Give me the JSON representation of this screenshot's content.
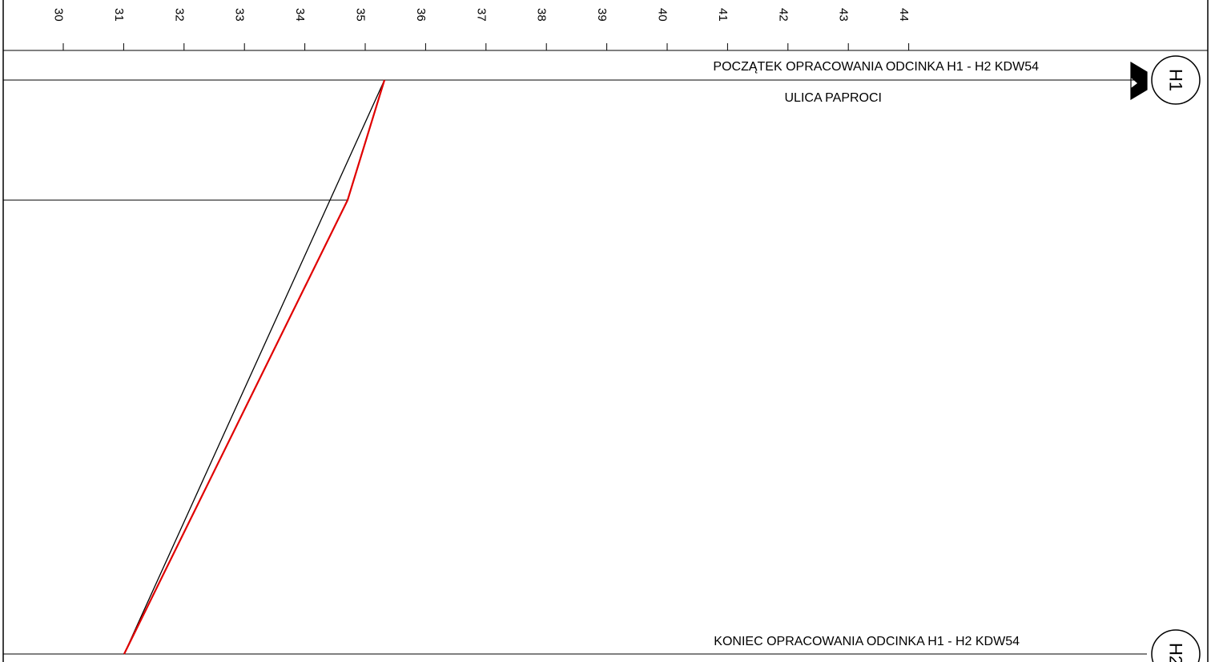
{
  "scale": {
    "ticks": [
      "30",
      "31",
      "32",
      "33",
      "34",
      "35",
      "36",
      "37",
      "38",
      "39",
      "40",
      "41",
      "42",
      "43",
      "44"
    ]
  },
  "labels": {
    "start_section": "POCZĄTEK  OPRACOWANIA  ODCINKA  H1 - H2  KDW54",
    "street": "ULICA  PAPROCI",
    "end_section": "KONIEC  OPRACOWANIA  ODCINKA  H1 - H2  KDW54"
  },
  "markers": {
    "start": "H1",
    "end": "H2"
  },
  "colors": {
    "ink": "#000000",
    "accent": "#e00000"
  }
}
